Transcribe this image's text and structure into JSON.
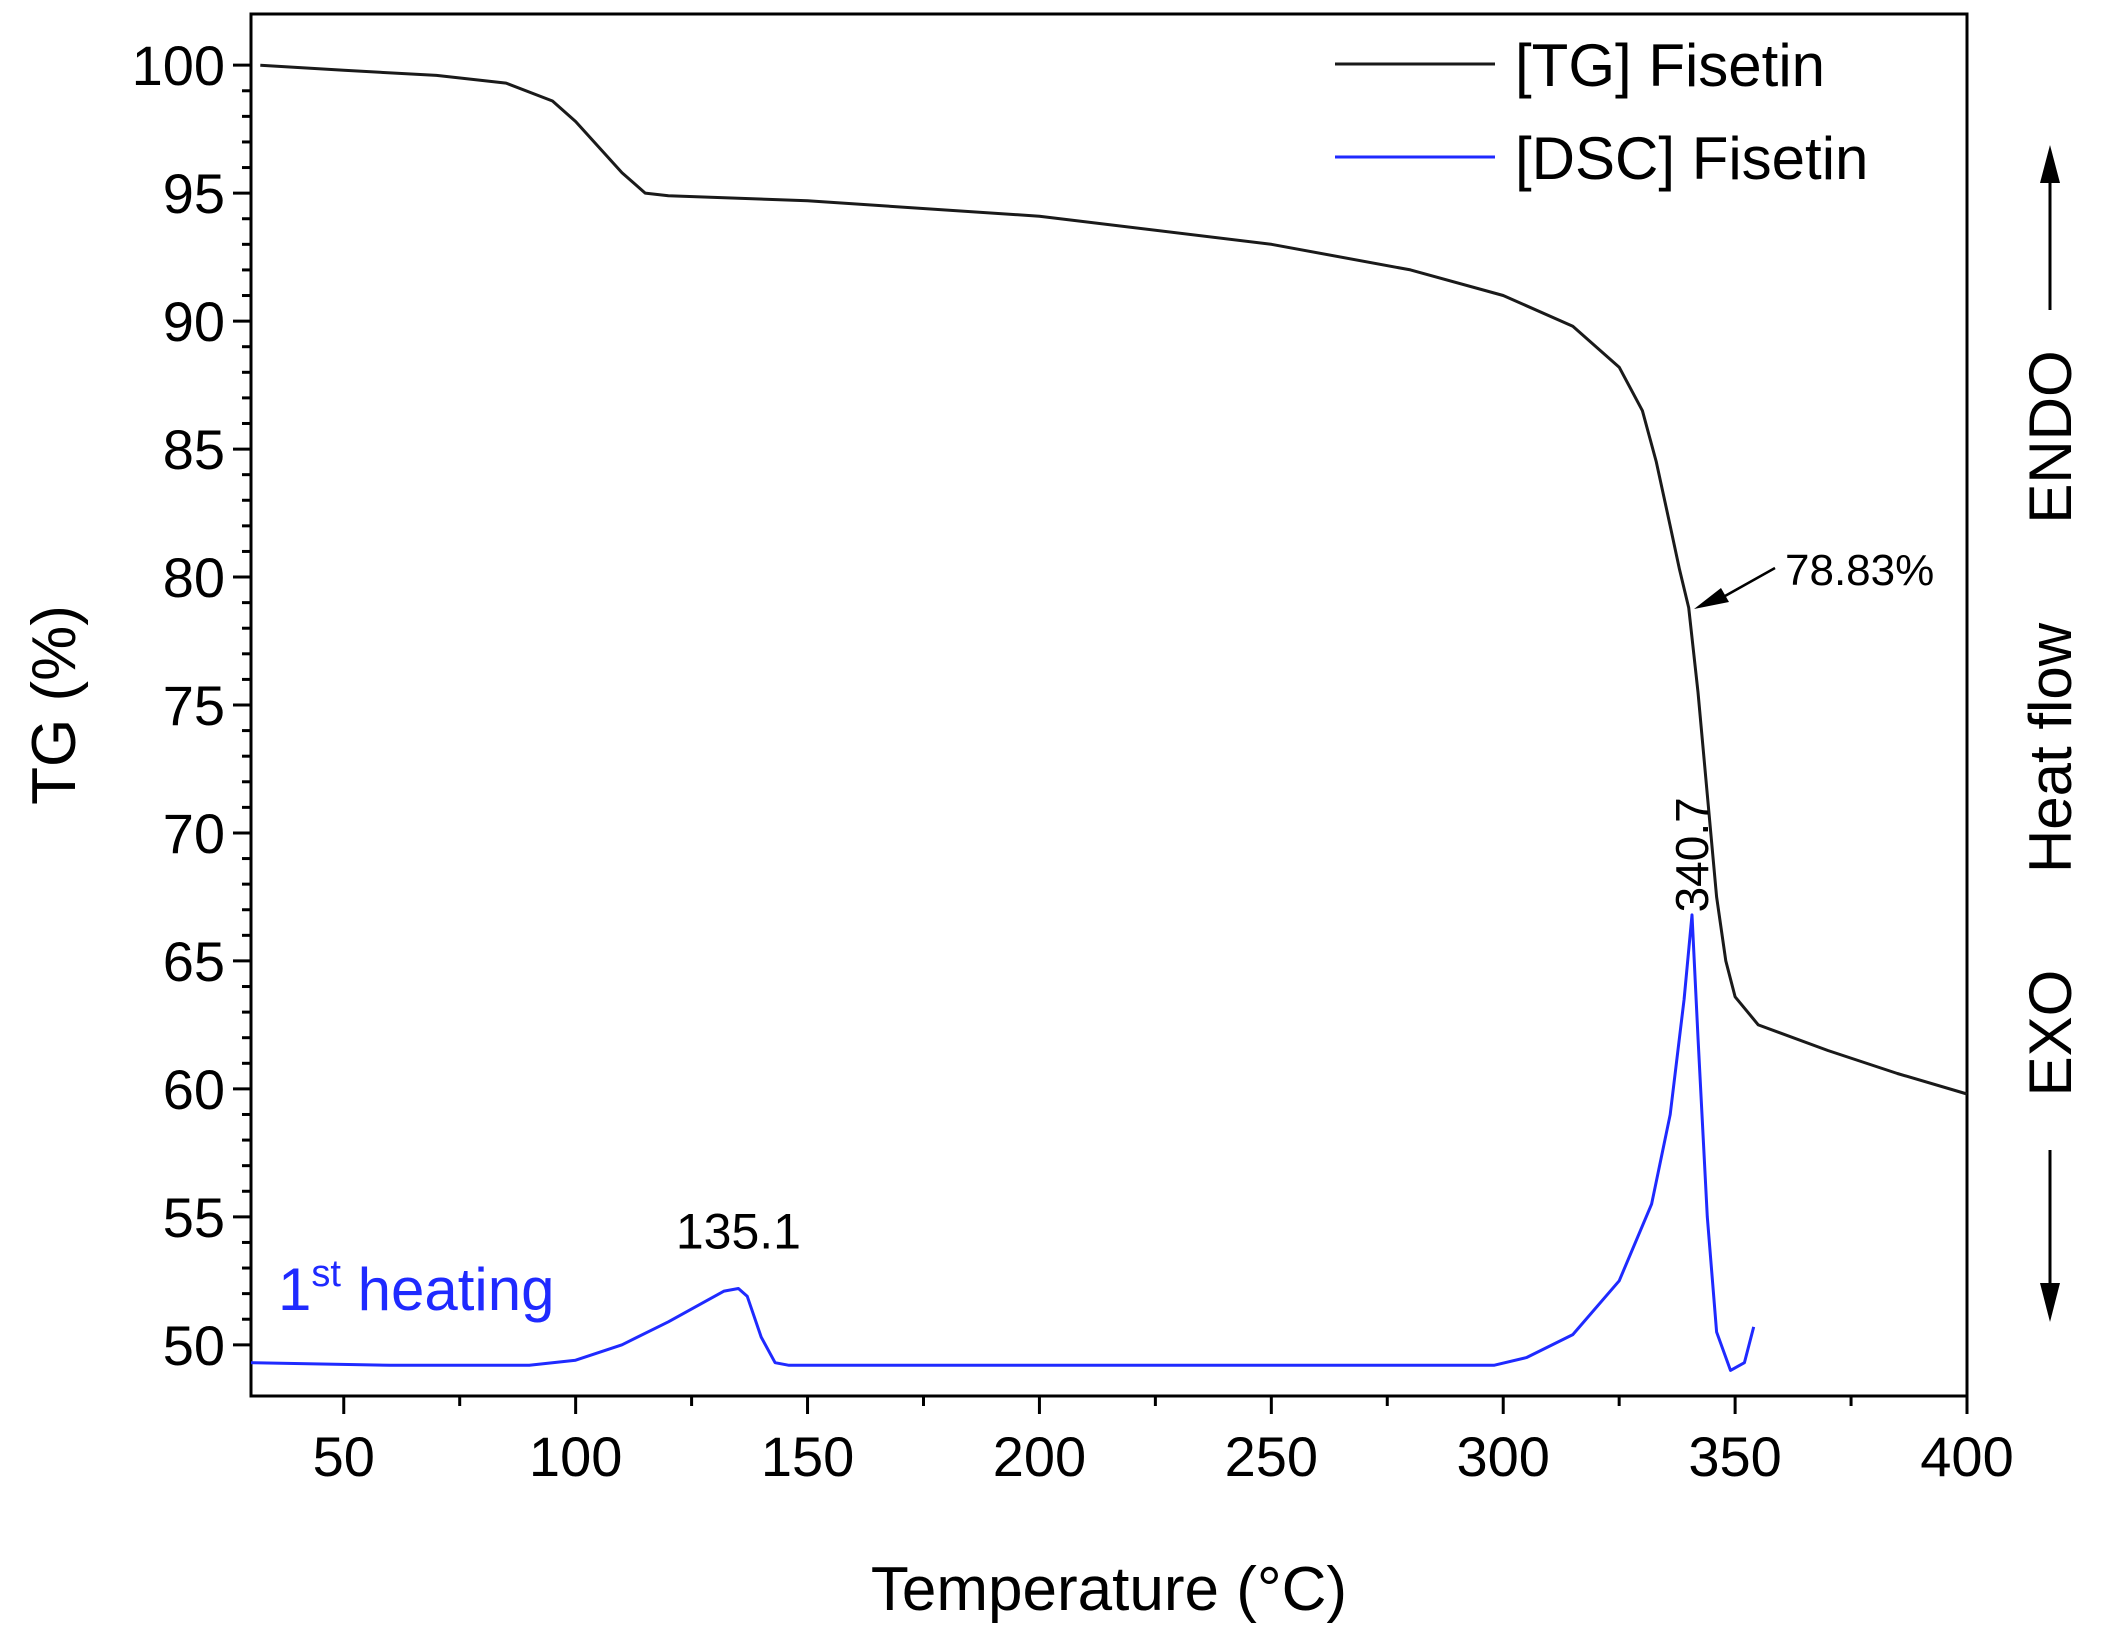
{
  "chart_data": {
    "type": "line",
    "xlabel": "Temperature (°C)",
    "ylabel": "TG (%)",
    "right_axis_labels": [
      "EXO",
      "Heat flow",
      "ENDO"
    ],
    "xlim": [
      30,
      400
    ],
    "ylim": [
      48,
      102
    ],
    "x_ticks": [
      50,
      100,
      150,
      200,
      250,
      300,
      350,
      400
    ],
    "y_ticks": [
      50,
      55,
      60,
      65,
      70,
      75,
      80,
      85,
      90,
      95,
      100
    ],
    "legend": {
      "position": "top-right",
      "entries": [
        "[TG] Fisetin",
        "[DSC] Fisetin"
      ]
    },
    "colors": {
      "tg": "#1a1a1a",
      "dsc": "#1f2aff",
      "axis": "#000000"
    },
    "series": [
      {
        "name": "[TG] Fisetin",
        "x": [
          32,
          50,
          70,
          85,
          95,
          100,
          105,
          110,
          115,
          120,
          150,
          200,
          250,
          280,
          300,
          315,
          325,
          330,
          333,
          336,
          338,
          340,
          342,
          344,
          346,
          348,
          350,
          355,
          370,
          385,
          400
        ],
        "y": [
          100.0,
          99.8,
          99.6,
          99.3,
          98.6,
          97.8,
          96.8,
          95.8,
          95.0,
          94.9,
          94.7,
          94.1,
          93.0,
          92.0,
          91.0,
          89.8,
          88.2,
          86.5,
          84.5,
          82.0,
          80.3,
          78.8,
          75.5,
          71.5,
          67.5,
          65.0,
          63.6,
          62.5,
          61.5,
          60.6,
          59.8
        ]
      },
      {
        "name": "[DSC] Fisetin",
        "x": [
          30,
          60,
          90,
          100,
          110,
          120,
          128,
          132,
          135.1,
          137,
          140,
          143,
          146,
          200,
          250,
          298,
          305,
          315,
          325,
          332,
          336,
          339,
          340.7,
          342,
          344,
          346,
          349,
          352,
          354
        ],
        "y": [
          49.3,
          49.2,
          49.2,
          49.4,
          50.0,
          50.9,
          51.7,
          52.1,
          52.2,
          51.9,
          50.3,
          49.3,
          49.2,
          49.2,
          49.2,
          49.2,
          49.5,
          50.4,
          52.5,
          55.5,
          59.0,
          63.5,
          66.8,
          62.0,
          55.0,
          50.5,
          49.0,
          49.3,
          50.7
        ]
      }
    ],
    "annotations": [
      {
        "text": "78.83%",
        "x": 340.7,
        "y": 78.83,
        "kind": "arrow"
      },
      {
        "text": "340.7",
        "x": 340.7,
        "y": 66.8,
        "kind": "peak"
      },
      {
        "text": "135.1",
        "x": 135.1,
        "y": 52.2,
        "kind": "peak"
      }
    ],
    "heating_label": {
      "main": "1",
      "sup": "st",
      "rest": " heating"
    }
  }
}
